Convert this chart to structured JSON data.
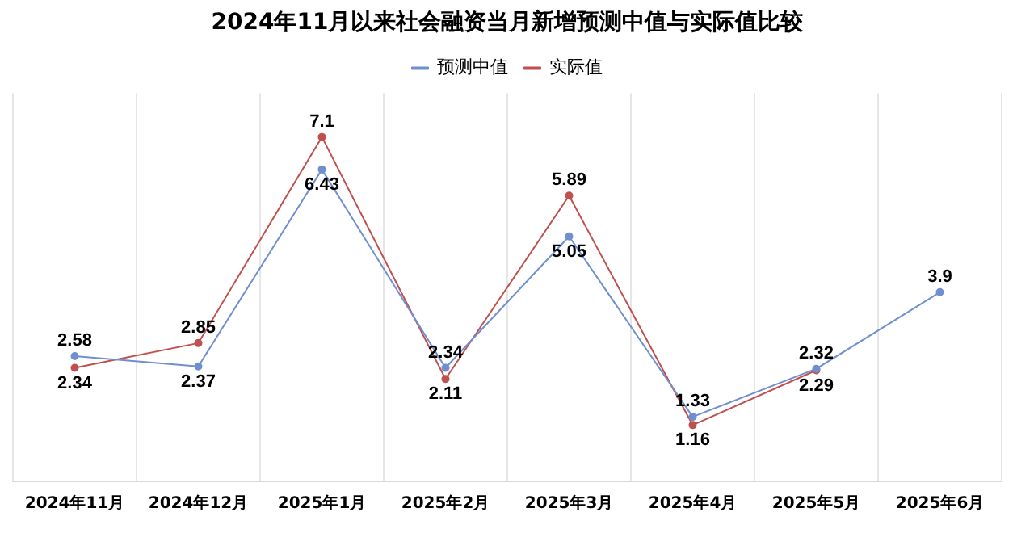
{
  "chart_data": {
    "type": "line",
    "title": "2024年11月以来社会融资当月新增预测中值与实际值比较",
    "categories": [
      "2024年11月",
      "2024年12月",
      "2025年1月",
      "2025年2月",
      "2025年3月",
      "2025年4月",
      "2025年5月",
      "2025年6月"
    ],
    "series": [
      {
        "name": "预测中值",
        "color": "#6f8fd0",
        "values": [
          2.58,
          2.37,
          6.43,
          2.34,
          5.05,
          1.33,
          2.32,
          3.9
        ]
      },
      {
        "name": "实际值",
        "color": "#c0504d",
        "values": [
          2.34,
          2.85,
          7.1,
          2.11,
          5.89,
          1.16,
          2.29,
          null
        ]
      }
    ],
    "data_labels": true,
    "grid": "x",
    "legend": "top",
    "marker": "circle",
    "tick_labels": "x"
  }
}
